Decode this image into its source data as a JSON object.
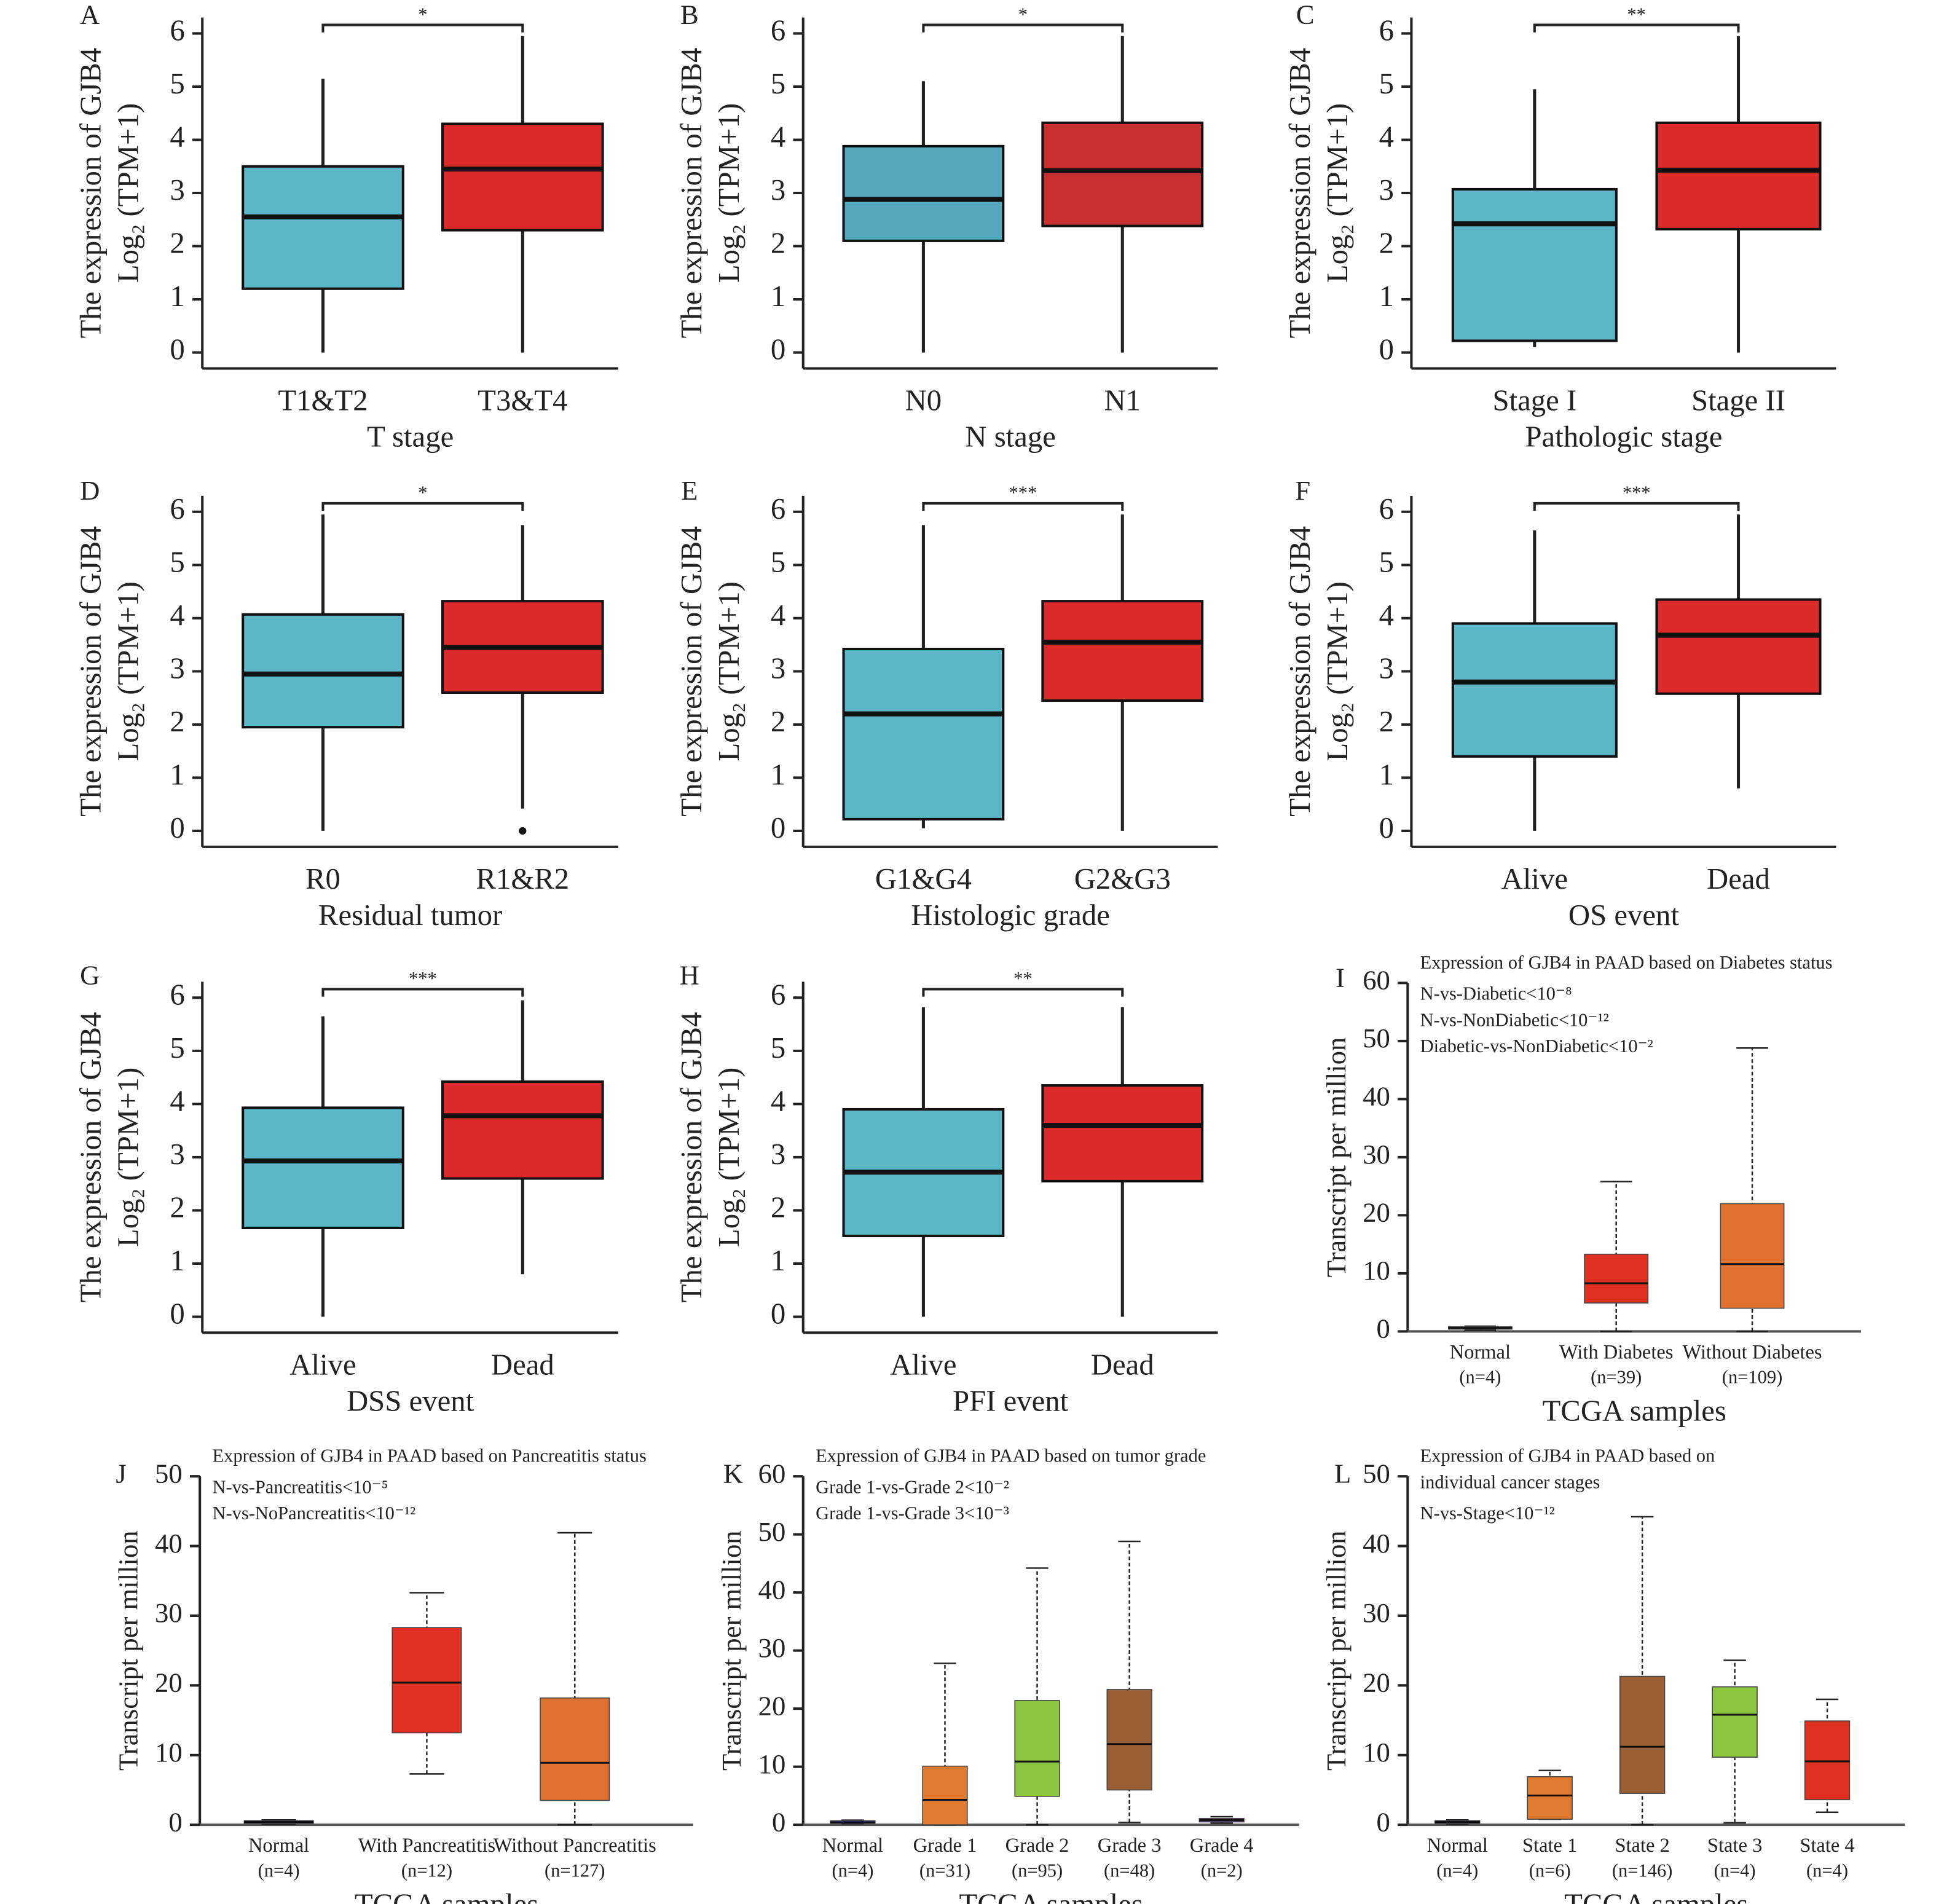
{
  "chart_data": [
    {
      "type": "box",
      "panel": "A",
      "ylabel": [
        "The expression of GJB4",
        "Log₂ (TPM+1)"
      ],
      "xlabel": "T stage",
      "categories": [
        "T1&T2",
        "T3&T4"
      ],
      "significance": "*",
      "boxes": [
        {
          "color": "#5bb7c8",
          "min": 0,
          "q1": 1.2,
          "median": 2.55,
          "q3": 3.5,
          "max": 5.15
        },
        {
          "color": "#dc2a2a",
          "min": 0,
          "q1": 2.3,
          "median": 3.45,
          "q3": 4.3,
          "max": 5.95
        }
      ],
      "ylim": [
        -0.3,
        6.3
      ],
      "yticks": [
        0,
        1,
        2,
        3,
        4,
        5,
        6
      ]
    },
    {
      "type": "box",
      "panel": "B",
      "ylabel": [
        "The expression of GJB4",
        "Log₂ (TPM+1)"
      ],
      "xlabel": "N stage",
      "categories": [
        "N0",
        "N1"
      ],
      "significance": "*",
      "boxes": [
        {
          "color": "#55a8bd",
          "min": 0,
          "q1": 2.1,
          "median": 2.88,
          "q3": 3.88,
          "max": 5.1
        },
        {
          "color": "#c8302f",
          "min": 0,
          "q1": 2.38,
          "median": 3.42,
          "q3": 4.32,
          "max": 5.95
        }
      ],
      "ylim": [
        -0.3,
        6.3
      ],
      "yticks": [
        0,
        1,
        2,
        3,
        4,
        5,
        6
      ]
    },
    {
      "type": "box",
      "panel": "C",
      "ylabel": [
        "The expression of GJB4",
        "Log₂ (TPM+1)"
      ],
      "xlabel": "Pathologic stage",
      "categories": [
        "Stage I",
        "Stage II"
      ],
      "significance": "**",
      "boxes": [
        {
          "color": "#5bb7c8",
          "min": 0.1,
          "q1": 0.22,
          "median": 2.42,
          "q3": 3.07,
          "max": 4.95
        },
        {
          "color": "#dc2a2a",
          "min": 0,
          "q1": 2.32,
          "median": 3.43,
          "q3": 4.32,
          "max": 5.95
        }
      ],
      "ylim": [
        -0.3,
        6.3
      ],
      "yticks": [
        0,
        1,
        2,
        3,
        4,
        5,
        6
      ]
    },
    {
      "type": "box",
      "panel": "D",
      "ylabel": [
        "The expression of GJB4",
        "Log₂ (TPM+1)"
      ],
      "xlabel": "Residual tumor",
      "categories": [
        "R0",
        "R1&R2"
      ],
      "significance": "*",
      "boxes": [
        {
          "color": "#5bb7c8",
          "min": 0,
          "q1": 1.95,
          "median": 2.95,
          "q3": 4.07,
          "max": 5.95
        },
        {
          "color": "#dc2a2a",
          "min": 0.42,
          "q1": 2.6,
          "median": 3.45,
          "q3": 4.32,
          "max": 5.75,
          "outliers": [
            0
          ]
        }
      ],
      "ylim": [
        -0.3,
        6.3
      ],
      "yticks": [
        0,
        1,
        2,
        3,
        4,
        5,
        6
      ]
    },
    {
      "type": "box",
      "panel": "E",
      "ylabel": [
        "The expression of GJB4",
        "Log₂ (TPM+1)"
      ],
      "xlabel": "Histologic grade",
      "categories": [
        "G1&G4",
        "G2&G3"
      ],
      "significance": "***",
      "boxes": [
        {
          "color": "#5bb7c8",
          "min": 0.05,
          "q1": 0.22,
          "median": 2.2,
          "q3": 3.42,
          "max": 5.75
        },
        {
          "color": "#dc2a2a",
          "min": 0,
          "q1": 2.45,
          "median": 3.55,
          "q3": 4.32,
          "max": 5.95
        }
      ],
      "ylim": [
        -0.3,
        6.3
      ],
      "yticks": [
        0,
        1,
        2,
        3,
        4,
        5,
        6
      ]
    },
    {
      "type": "box",
      "panel": "F",
      "ylabel": [
        "The expression of GJB4",
        "Log₂ (TPM+1)"
      ],
      "xlabel": "OS event",
      "categories": [
        "Alive",
        "Dead"
      ],
      "significance": "***",
      "boxes": [
        {
          "color": "#5bb7c8",
          "min": 0,
          "q1": 1.4,
          "median": 2.8,
          "q3": 3.9,
          "max": 5.65
        },
        {
          "color": "#dc2a2a",
          "min": 0.8,
          "q1": 2.58,
          "median": 3.68,
          "q3": 4.35,
          "max": 5.95
        }
      ],
      "ylim": [
        -0.3,
        6.3
      ],
      "yticks": [
        0,
        1,
        2,
        3,
        4,
        5,
        6
      ]
    },
    {
      "type": "box",
      "panel": "G",
      "ylabel": [
        "The expression of GJB4",
        "Log₂ (TPM+1)"
      ],
      "xlabel": "DSS event",
      "categories": [
        "Alive",
        "Dead"
      ],
      "significance": "***",
      "boxes": [
        {
          "color": "#5bb7c8",
          "min": 0,
          "q1": 1.67,
          "median": 2.93,
          "q3": 3.93,
          "max": 5.65
        },
        {
          "color": "#dc2a2a",
          "min": 0.8,
          "q1": 2.6,
          "median": 3.78,
          "q3": 4.42,
          "max": 5.95
        }
      ],
      "ylim": [
        -0.3,
        6.3
      ],
      "yticks": [
        0,
        1,
        2,
        3,
        4,
        5,
        6
      ]
    },
    {
      "type": "box",
      "panel": "H",
      "ylabel": [
        "The expression of GJB4",
        "Log₂ (TPM+1)"
      ],
      "xlabel": "PFI event",
      "categories": [
        "Alive",
        "Dead"
      ],
      "significance": "**",
      "boxes": [
        {
          "color": "#5bb7c8",
          "min": 0,
          "q1": 1.52,
          "median": 2.72,
          "q3": 3.9,
          "max": 5.82
        },
        {
          "color": "#dc2a2a",
          "min": 0,
          "q1": 2.55,
          "median": 3.6,
          "q3": 4.35,
          "max": 5.82
        }
      ],
      "ylim": [
        -0.3,
        6.3
      ],
      "yticks": [
        0,
        1,
        2,
        3,
        4,
        5,
        6
      ]
    },
    {
      "type": "box",
      "panel": "I",
      "whisker_style": "dashed",
      "title": [
        "Expression of GJB4 in PAAD based on Diabetes status"
      ],
      "annotations": [
        "N-vs-Diabetic<10⁻⁸",
        "N-vs-NonDiabetic<10⁻¹²",
        "Diabetic-vs-NonDiabetic<10⁻²"
      ],
      "ylabel": [
        "Transcript per million"
      ],
      "xlabel": "TCGA samples",
      "categories": [
        "Normal",
        "With Diabetes",
        "Without Diabetes"
      ],
      "sublabels": [
        "(n=4)",
        "(n=39)",
        "(n=109)"
      ],
      "boxes": [
        {
          "color": "#1f2a6b",
          "min": 0.2,
          "q1": 0.4,
          "median": 0.6,
          "q3": 0.8,
          "max": 0.9
        },
        {
          "color": "#e03020",
          "min": 0,
          "q1": 4.9,
          "median": 8.3,
          "q3": 13.3,
          "max": 25.8
        },
        {
          "color": "#e07030",
          "min": 0,
          "q1": 4,
          "median": 11.6,
          "q3": 22,
          "max": 48.8
        }
      ],
      "ylim": [
        0,
        60
      ],
      "yticks": [
        0,
        10,
        20,
        30,
        40,
        50,
        60
      ]
    },
    {
      "type": "box",
      "panel": "J",
      "whisker_style": "dashed",
      "title": [
        "Expression of GJB4 in PAAD based on Pancreatitis status"
      ],
      "annotations": [
        "N-vs-Pancreatitis<10⁻⁵",
        "N-vs-NoPancreatitis<10⁻¹²"
      ],
      "ylabel": [
        "Transcript per million"
      ],
      "xlabel": "TCGA samples",
      "categories": [
        "Normal",
        "With Pancreatitis",
        "Without Pancreatitis"
      ],
      "sublabels": [
        "(n=4)",
        "(n=12)",
        "(n=127)"
      ],
      "boxes": [
        {
          "color": "#1f2a6b",
          "min": 0.1,
          "q1": 0.2,
          "median": 0.4,
          "q3": 0.6,
          "max": 0.7
        },
        {
          "color": "#e03020",
          "min": 7.3,
          "q1": 13.2,
          "median": 20.4,
          "q3": 28.3,
          "max": 33.3
        },
        {
          "color": "#e07030",
          "min": 0,
          "q1": 3.5,
          "median": 8.9,
          "q3": 18.2,
          "max": 41.9
        }
      ],
      "ylim": [
        0,
        50
      ],
      "yticks": [
        0,
        10,
        20,
        30,
        40,
        50
      ]
    },
    {
      "type": "box",
      "panel": "K",
      "whisker_style": "dashed",
      "title": [
        "Expression of GJB4 in PAAD based on tumor grade"
      ],
      "annotations": [
        "Grade 1-vs-Grade 2<10⁻²",
        "Grade 1-vs-Grade 3<10⁻³"
      ],
      "ylabel": [
        "Transcript per million"
      ],
      "xlabel": "TCGA samples",
      "categories": [
        "Normal",
        "Grade 1",
        "Grade 2",
        "Grade 3",
        "Grade 4"
      ],
      "sublabels": [
        "(n=4)",
        "(n=31)",
        "(n=95)",
        "(n=48)",
        "(n=2)"
      ],
      "boxes": [
        {
          "color": "#1f2a6b",
          "min": 0.2,
          "q1": 0.3,
          "median": 0.4,
          "q3": 0.7,
          "max": 0.8
        },
        {
          "color": "#e07a30",
          "min": 0,
          "q1": 0,
          "median": 4.3,
          "q3": 10.1,
          "max": 27.8
        },
        {
          "color": "#8cc63f",
          "min": 0,
          "q1": 4.9,
          "median": 10.9,
          "q3": 21.4,
          "max": 44.2
        },
        {
          "color": "#9a5f35",
          "min": 0.4,
          "q1": 6,
          "median": 13.9,
          "q3": 23.3,
          "max": 48.8
        },
        {
          "color": "#7b3f8f",
          "min": 0.3,
          "q1": 0.5,
          "median": 0.8,
          "q3": 1.1,
          "max": 1.4
        }
      ],
      "ylim": [
        0,
        60
      ],
      "yticks": [
        0,
        10,
        20,
        30,
        40,
        50,
        60
      ]
    },
    {
      "type": "box",
      "panel": "L",
      "whisker_style": "dashed",
      "title": [
        "Expression of GJB4 in PAAD based on",
        "individual cancer stages"
      ],
      "annotations": [
        "N-vs-Stage<10⁻¹²"
      ],
      "ylabel": [
        "Transcript per million"
      ],
      "xlabel": "TCGA samples",
      "categories": [
        "Normal",
        "State 1",
        "State 2",
        "State 3",
        "State 4"
      ],
      "sublabels": [
        "(n=4)",
        "(n=6)",
        "(n=146)",
        "(n=4)",
        "(n=4)"
      ],
      "boxes": [
        {
          "color": "#1f2a6b",
          "min": 0.1,
          "q1": 0.2,
          "median": 0.4,
          "q3": 0.6,
          "max": 0.7
        },
        {
          "color": "#e07a30",
          "min": 0.8,
          "q1": 0.8,
          "median": 4.2,
          "q3": 6.9,
          "max": 7.8
        },
        {
          "color": "#9a5f35",
          "min": 0,
          "q1": 4.5,
          "median": 11.2,
          "q3": 21.3,
          "max": 44.2
        },
        {
          "color": "#8cc63f",
          "min": 0.3,
          "q1": 9.7,
          "median": 15.8,
          "q3": 19.8,
          "max": 23.6
        },
        {
          "color": "#e03020",
          "min": 1.8,
          "q1": 3.6,
          "median": 9.1,
          "q3": 14.9,
          "max": 18
        }
      ],
      "ylim": [
        0,
        50
      ],
      "yticks": [
        0,
        10,
        20,
        30,
        40,
        50
      ]
    }
  ]
}
